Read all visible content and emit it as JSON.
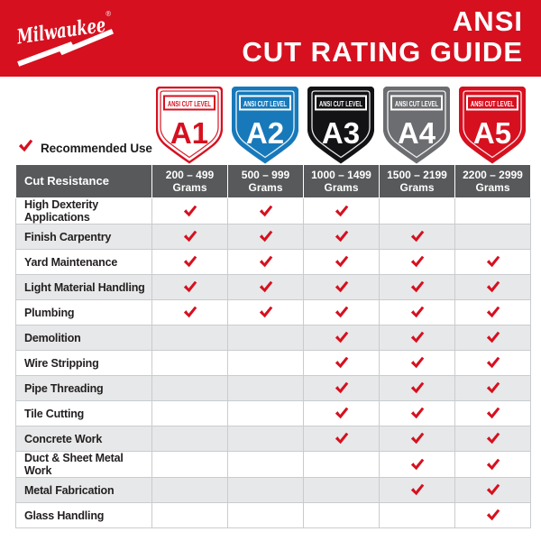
{
  "header": {
    "logo_text": "Milwaukee",
    "registered_mark": "®",
    "title_line1": "ANSI",
    "title_line2": "CUT RATING GUIDE"
  },
  "legend": {
    "label": "Recommended Use"
  },
  "colors": {
    "brand_red": "#D6101F",
    "banner_bg": "#D6101F",
    "check_red": "#D6101F",
    "badge_blue": "#1779BA",
    "badge_black": "#131316",
    "badge_gray": "#6C6D70",
    "header_row_bg": "#58595B",
    "alt_row_bg": "#E7E8E9",
    "grid_border": "#C9CCCE"
  },
  "chart_data": {
    "type": "table",
    "title": "ANSI CUT RATING GUIDE",
    "corner_label": "Cut Resistance",
    "check_meaning": "Recommended Use",
    "cut_levels": [
      {
        "level": "A1",
        "badge_label": "ANSI CUT LEVEL",
        "grams_range": "200 – 499",
        "grams_unit": "Grams",
        "badge_style": "outline",
        "badge_color": "#D6101F"
      },
      {
        "level": "A2",
        "badge_label": "ANSI CUT LEVEL",
        "grams_range": "500 – 999",
        "grams_unit": "Grams",
        "badge_style": "solid",
        "badge_color": "#1779BA"
      },
      {
        "level": "A3",
        "badge_label": "ANSI CUT LEVEL",
        "grams_range": "1000 – 1499",
        "grams_unit": "Grams",
        "badge_style": "solid",
        "badge_color": "#131316"
      },
      {
        "level": "A4",
        "badge_label": "ANSI CUT LEVEL",
        "grams_range": "1500 – 2199",
        "grams_unit": "Grams",
        "badge_style": "solid",
        "badge_color": "#6C6D70"
      },
      {
        "level": "A5",
        "badge_label": "ANSI CUT LEVEL",
        "grams_range": "2200 – 2999",
        "grams_unit": "Grams",
        "badge_style": "solid",
        "badge_color": "#D6101F"
      }
    ],
    "rows": [
      {
        "label": "High Dexterity Applications",
        "checks": [
          true,
          true,
          true,
          false,
          false
        ]
      },
      {
        "label": "Finish Carpentry",
        "checks": [
          true,
          true,
          true,
          true,
          false
        ]
      },
      {
        "label": "Yard Maintenance",
        "checks": [
          true,
          true,
          true,
          true,
          true
        ]
      },
      {
        "label": "Light Material Handling",
        "checks": [
          true,
          true,
          true,
          true,
          true
        ]
      },
      {
        "label": "Plumbing",
        "checks": [
          true,
          true,
          true,
          true,
          true
        ]
      },
      {
        "label": "Demolition",
        "checks": [
          false,
          false,
          true,
          true,
          true
        ]
      },
      {
        "label": "Wire Stripping",
        "checks": [
          false,
          false,
          true,
          true,
          true
        ]
      },
      {
        "label": "Pipe Threading",
        "checks": [
          false,
          false,
          true,
          true,
          true
        ]
      },
      {
        "label": "Tile Cutting",
        "checks": [
          false,
          false,
          true,
          true,
          true
        ]
      },
      {
        "label": "Concrete Work",
        "checks": [
          false,
          false,
          true,
          true,
          true
        ]
      },
      {
        "label": "Duct & Sheet Metal Work",
        "checks": [
          false,
          false,
          false,
          true,
          true
        ]
      },
      {
        "label": "Metal Fabrication",
        "checks": [
          false,
          false,
          false,
          true,
          true
        ]
      },
      {
        "label": "Glass Handling",
        "checks": [
          false,
          false,
          false,
          false,
          true
        ]
      }
    ]
  }
}
